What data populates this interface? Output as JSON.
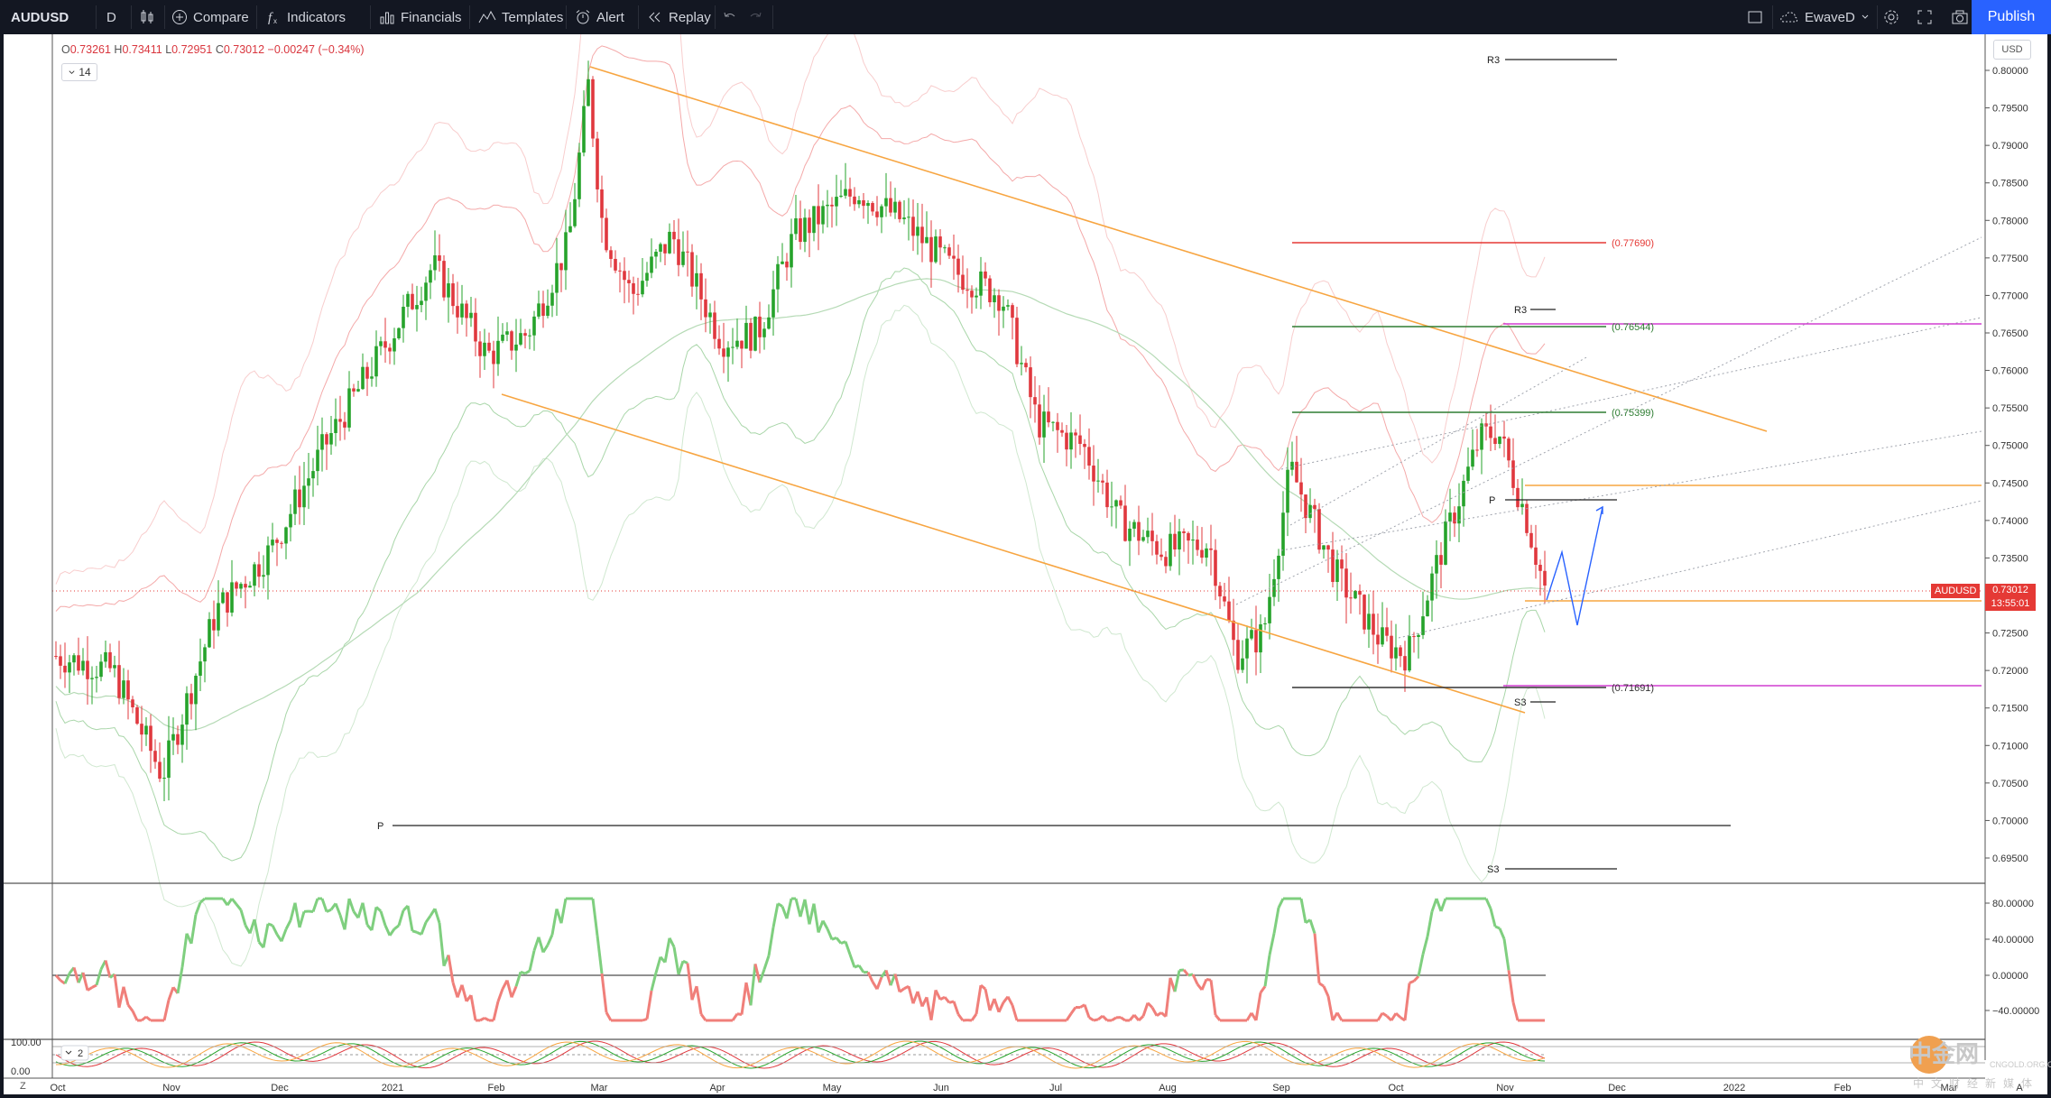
{
  "toolbar": {
    "symbol": "AUDUSD",
    "interval": "D",
    "compare": "Compare",
    "indicators": "Indicators",
    "financials": "Financials",
    "templates": "Templates",
    "alert": "Alert",
    "replay": "Replay",
    "layout_name": "EwaveD",
    "publish": "Publish"
  },
  "legend": {
    "o_label": "O",
    "o": "0.73261",
    "h_label": "H",
    "h": "0.73411",
    "l_label": "L",
    "l": "0.72951",
    "c_label": "C",
    "c": "0.73012",
    "change": "−0.00247 (−0.34%)",
    "collapsed_count": "14"
  },
  "currency": "USD",
  "price_tag": {
    "symbol": "AUDUSD",
    "price": "0.73012",
    "countdown": "13:55:01"
  },
  "price_axis": [
    "0.80000",
    "0.79500",
    "0.79000",
    "0.78500",
    "0.78000",
    "0.77500",
    "0.77000",
    "0.76500",
    "0.76000",
    "0.75500",
    "0.75000",
    "0.74500",
    "0.74000",
    "0.73500",
    "0.73000",
    "0.72500",
    "0.72000",
    "0.71500",
    "0.71000",
    "0.70500",
    "0.70000",
    "0.69500"
  ],
  "osc_axis": [
    "80.00000",
    "40.00000",
    "0.00000",
    "−40.00000"
  ],
  "stoch_axis": [
    "100.00",
    "0.00"
  ],
  "stoch_collapsed": "2",
  "time_axis": [
    "Oct",
    "Nov",
    "Dec",
    "2021",
    "Feb",
    "Mar",
    "Apr",
    "May",
    "Jun",
    "Jul",
    "Aug",
    "Sep",
    "Oct",
    "Nov",
    "Dec",
    "2022",
    "Feb",
    "Mar",
    "A"
  ],
  "levels": {
    "r3_top": "R3",
    "s3_bottom": "S3",
    "p_low": "P",
    "r3_small": "R3",
    "s3_small": "S3",
    "p_small": "P",
    "l_77690": "(0.77690)",
    "l_76544": "(0.76544)",
    "l_75399": "(0.75399)",
    "l_71691": "(0.71691)"
  },
  "watermark": {
    "brand": "中金网",
    "url": "CNGOLD.ORG.CN",
    "sub": "中文财经新媒体"
  },
  "timezone_btn": "Z",
  "colors": {
    "up": "#26a32b",
    "down": "#e0383e",
    "channel": "#f7a541",
    "pivot_red": "#e53935",
    "pivot_green": "#2e7d32",
    "fib_magenta": "#d13ed1",
    "projection": "#2962ff"
  }
}
